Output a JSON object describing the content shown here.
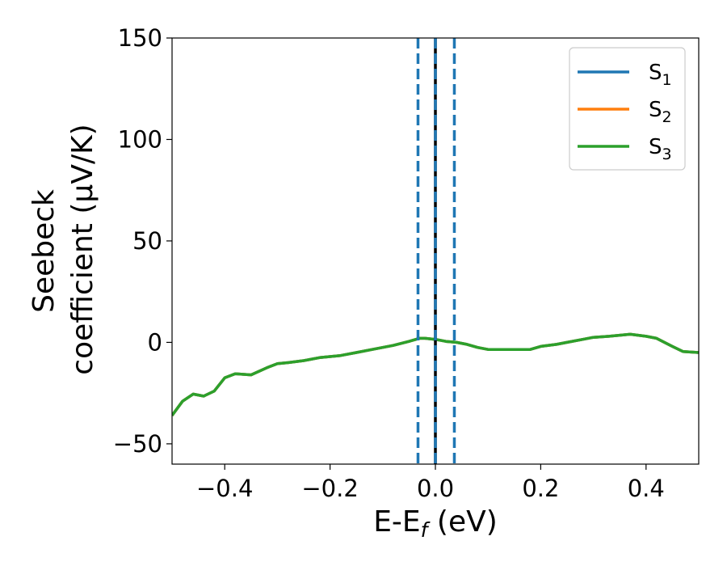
{
  "chart_data": {
    "type": "line",
    "xlabel": "E-E",
    "xlabel_subscript": "f",
    "xlabel_suffix": " (eV)",
    "ylabel_line1": "Seebeck",
    "ylabel_line2": "coefficient  (μV/K)",
    "xlim": [
      -0.5,
      0.5
    ],
    "ylim": [
      -60,
      150
    ],
    "xticks": [
      -0.4,
      -0.2,
      0.0,
      0.2,
      0.4
    ],
    "xtick_labels": [
      "−0.4",
      "−0.2",
      "0.0",
      "0.2",
      "0.4"
    ],
    "yticks": [
      -50,
      0,
      50,
      100,
      150
    ],
    "ytick_labels": [
      "−50",
      "0",
      "50",
      "100",
      "150"
    ],
    "grid": false,
    "legend_position": "top-right",
    "x": [
      -0.5,
      -0.48,
      -0.46,
      -0.44,
      -0.42,
      -0.4,
      -0.38,
      -0.35,
      -0.32,
      -0.3,
      -0.28,
      -0.25,
      -0.22,
      -0.2,
      -0.18,
      -0.15,
      -0.12,
      -0.1,
      -0.08,
      -0.05,
      -0.03,
      -0.02,
      0.0,
      0.02,
      0.04,
      0.06,
      0.08,
      0.1,
      0.13,
      0.15,
      0.18,
      0.2,
      0.23,
      0.25,
      0.28,
      0.3,
      0.33,
      0.35,
      0.37,
      0.4,
      0.42,
      0.45,
      0.47,
      0.5
    ],
    "series": [
      {
        "name": "S",
        "subscript": "1",
        "color": "#1f77b4",
        "values": [
          -36,
          -29,
          -25.5,
          -26.5,
          -24,
          -17.5,
          -15.5,
          -16,
          -12.5,
          -10.5,
          -10,
          -9,
          -7.5,
          -7,
          -6.5,
          -5,
          -3.5,
          -2.5,
          -1.5,
          0.5,
          2,
          2,
          1.5,
          0.5,
          0,
          -1,
          -2.5,
          -3.5,
          -3.5,
          -3.5,
          -3.5,
          -2,
          -1,
          0,
          1.5,
          2.5,
          3,
          3.5,
          4,
          3,
          2,
          -2,
          -4.5,
          -5
        ]
      },
      {
        "name": "S",
        "subscript": "2",
        "color": "#ff7f0e",
        "values": [
          -36,
          -29,
          -25.5,
          -26.5,
          -24,
          -17.5,
          -15.5,
          -16,
          -12.5,
          -10.5,
          -10,
          -9,
          -7.5,
          -7,
          -6.5,
          -5,
          -3.5,
          -2.5,
          -1.5,
          0.5,
          2,
          2,
          1.5,
          0.5,
          0,
          -1,
          -2.5,
          -3.5,
          -3.5,
          -3.5,
          -3.5,
          -2,
          -1,
          0,
          1.5,
          2.5,
          3,
          3.5,
          4,
          3,
          2,
          -2,
          -4.5,
          -5
        ]
      },
      {
        "name": "S",
        "subscript": "3",
        "color": "#2ca02c",
        "values": [
          -36,
          -29,
          -25.5,
          -26.5,
          -24,
          -17.5,
          -15.5,
          -16,
          -12.5,
          -10.5,
          -10,
          -9,
          -7.5,
          -7,
          -6.5,
          -5,
          -3.5,
          -2.5,
          -1.5,
          0.5,
          2,
          2,
          1.5,
          0.5,
          0,
          -1,
          -2.5,
          -3.5,
          -3.5,
          -3.5,
          -3.5,
          -2,
          -1,
          0,
          1.5,
          2.5,
          3,
          3.5,
          4,
          3,
          2,
          -2,
          -4.5,
          -5
        ]
      }
    ],
    "vertical_lines": [
      {
        "x": -0.033,
        "style": "dashed",
        "color": "#1f77b4"
      },
      {
        "x": 0.036,
        "style": "dashed",
        "color": "#1f77b4"
      },
      {
        "x": 0.0,
        "style": "solid",
        "color": "#000000"
      },
      {
        "x": 0.0,
        "style": "dashed",
        "color": "#1f77b4"
      }
    ]
  }
}
